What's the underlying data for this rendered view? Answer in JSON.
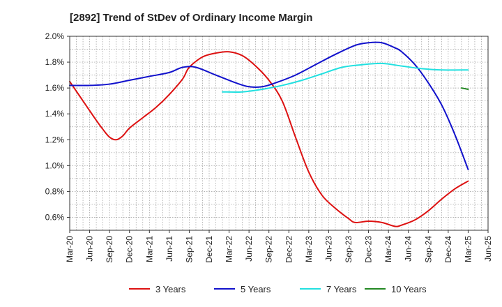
{
  "chart_data": {
    "type": "line",
    "title": "[2892]  Trend of StDev of Ordinary Income Margin",
    "xlabel": "",
    "ylabel": "",
    "x_ticks": [
      "Mar-20",
      "Jun-20",
      "Sep-20",
      "Dec-20",
      "Mar-21",
      "Jun-21",
      "Sep-21",
      "Dec-21",
      "Mar-22",
      "Jun-22",
      "Sep-22",
      "Dec-22",
      "Mar-23",
      "Jun-23",
      "Sep-23",
      "Dec-23",
      "Mar-24",
      "Jun-24",
      "Sep-24",
      "Dec-24",
      "Mar-25",
      "Jun-25"
    ],
    "y_ticks": [
      "0.6%",
      "0.8%",
      "1.0%",
      "1.2%",
      "1.4%",
      "1.6%",
      "1.8%",
      "2.0%"
    ],
    "ylim": [
      0.5,
      2.0
    ],
    "grid": true,
    "legend_position": "bottom",
    "series": [
      {
        "name": "3 Years",
        "color": "#dd1111",
        "points": [
          [
            "Mar-20",
            1.65
          ],
          [
            "May-20",
            1.5
          ],
          [
            "Jul-20",
            1.35
          ],
          [
            "Aug-20",
            1.28
          ],
          [
            "Sep-20",
            1.22
          ],
          [
            "Oct-20",
            1.2
          ],
          [
            "Nov-20",
            1.23
          ],
          [
            "Dec-20",
            1.29
          ],
          [
            "Feb-21",
            1.37
          ],
          [
            "Apr-21",
            1.45
          ],
          [
            "Jun-21",
            1.55
          ],
          [
            "Aug-21",
            1.67
          ],
          [
            "Sep-21",
            1.76
          ],
          [
            "Nov-21",
            1.84
          ],
          [
            "Jan-22",
            1.87
          ],
          [
            "Mar-22",
            1.88
          ],
          [
            "May-22",
            1.85
          ],
          [
            "Jul-22",
            1.77
          ],
          [
            "Sep-22",
            1.66
          ],
          [
            "Nov-22",
            1.5
          ],
          [
            "Jan-23",
            1.22
          ],
          [
            "Mar-23",
            0.95
          ],
          [
            "May-23",
            0.77
          ],
          [
            "Jul-23",
            0.67
          ],
          [
            "Sep-23",
            0.59
          ],
          [
            "Oct-23",
            0.56
          ],
          [
            "Dec-23",
            0.57
          ],
          [
            "Feb-24",
            0.56
          ],
          [
            "Apr-24",
            0.53
          ],
          [
            "May-24",
            0.54
          ],
          [
            "Jul-24",
            0.58
          ],
          [
            "Sep-24",
            0.65
          ],
          [
            "Nov-24",
            0.74
          ],
          [
            "Jan-25",
            0.82
          ],
          [
            "Mar-25",
            0.88
          ]
        ]
      },
      {
        "name": "5 Years",
        "color": "#1111cc",
        "points": [
          [
            "Mar-20",
            1.62
          ],
          [
            "Jun-20",
            1.62
          ],
          [
            "Sep-20",
            1.63
          ],
          [
            "Dec-20",
            1.66
          ],
          [
            "Mar-21",
            1.69
          ],
          [
            "Jun-21",
            1.72
          ],
          [
            "Aug-21",
            1.76
          ],
          [
            "Oct-21",
            1.76
          ],
          [
            "Jan-22",
            1.7
          ],
          [
            "Apr-22",
            1.64
          ],
          [
            "Jun-22",
            1.61
          ],
          [
            "Aug-22",
            1.61
          ],
          [
            "Oct-22",
            1.64
          ],
          [
            "Jan-23",
            1.7
          ],
          [
            "Apr-23",
            1.78
          ],
          [
            "Jul-23",
            1.86
          ],
          [
            "Oct-23",
            1.93
          ],
          [
            "Dec-23",
            1.95
          ],
          [
            "Feb-24",
            1.95
          ],
          [
            "Apr-24",
            1.91
          ],
          [
            "May-24",
            1.88
          ],
          [
            "Jul-24",
            1.78
          ],
          [
            "Sep-24",
            1.64
          ],
          [
            "Nov-24",
            1.47
          ],
          [
            "Jan-25",
            1.24
          ],
          [
            "Mar-25",
            0.97
          ]
        ]
      },
      {
        "name": "7 Years",
        "color": "#22e0e0",
        "points": [
          [
            "Feb-22",
            1.57
          ],
          [
            "May-22",
            1.57
          ],
          [
            "Aug-22",
            1.59
          ],
          [
            "Nov-22",
            1.62
          ],
          [
            "Feb-23",
            1.66
          ],
          [
            "May-23",
            1.71
          ],
          [
            "Aug-23",
            1.76
          ],
          [
            "Nov-23",
            1.78
          ],
          [
            "Feb-24",
            1.79
          ],
          [
            "May-24",
            1.77
          ],
          [
            "Aug-24",
            1.75
          ],
          [
            "Nov-24",
            1.74
          ],
          [
            "Mar-25",
            1.74
          ]
        ]
      },
      {
        "name": "10 Years",
        "color": "#228822",
        "points": [
          [
            "Feb-25",
            1.6
          ],
          [
            "Mar-25",
            1.59
          ]
        ]
      }
    ]
  }
}
